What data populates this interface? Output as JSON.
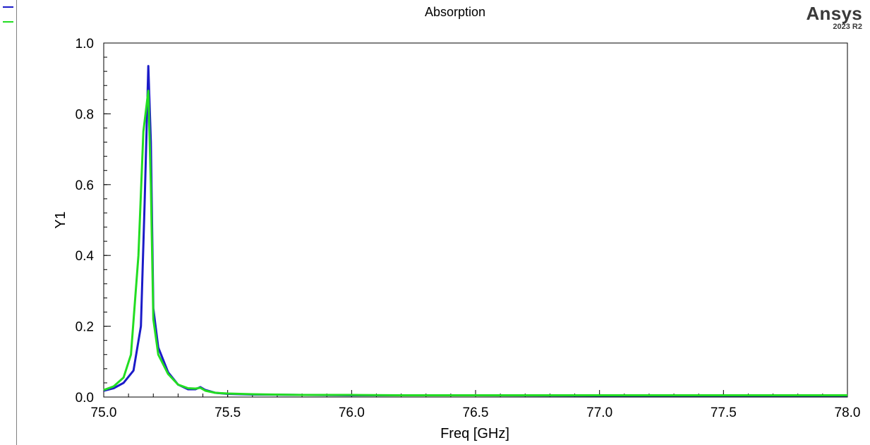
{
  "brand": {
    "name": "Ansys",
    "version": "2023 R2"
  },
  "colors": {
    "series1": "#1b1bc8",
    "series2": "#22dd22",
    "frame": "#000000"
  },
  "chart_data": {
    "type": "line",
    "title": "Absorption",
    "xlabel": "Freq [GHz]",
    "ylabel": "Y1",
    "xlim": [
      75.0,
      78.0
    ],
    "ylim": [
      0.0,
      1.0
    ],
    "grid": false,
    "legend": "top-left",
    "xticks": [
      75.0,
      75.5,
      76.0,
      76.5,
      77.0,
      77.5,
      78.0
    ],
    "xtick_labels": [
      "75.0",
      "75.5",
      "76.0",
      "76.5",
      "77.0",
      "77.5",
      "78.0"
    ],
    "yticks": [
      0.0,
      0.2,
      0.4,
      0.6,
      0.8,
      1.0
    ],
    "ytick_labels": [
      "0.0",
      "0.2",
      "0.4",
      "0.6",
      "0.8",
      "1.0"
    ],
    "series": [
      {
        "color": "#1b1bc8",
        "x": [
          75.0,
          75.04,
          75.08,
          75.12,
          75.15,
          75.165,
          75.18,
          75.19,
          75.2,
          75.22,
          75.26,
          75.3,
          75.34,
          75.37,
          75.39,
          75.41,
          75.45,
          75.5,
          75.6,
          75.8,
          76.0,
          76.2,
          76.5,
          77.0,
          77.5,
          78.0
        ],
        "y": [
          0.018,
          0.025,
          0.04,
          0.075,
          0.2,
          0.55,
          0.935,
          0.72,
          0.25,
          0.14,
          0.07,
          0.035,
          0.022,
          0.022,
          0.028,
          0.02,
          0.012,
          0.009,
          0.007,
          0.006,
          0.005,
          0.005,
          0.005,
          0.004,
          0.004,
          0.004
        ]
      },
      {
        "color": "#22dd22",
        "x": [
          75.0,
          75.04,
          75.08,
          75.11,
          75.14,
          75.16,
          75.18,
          75.19,
          75.2,
          75.22,
          75.26,
          75.3,
          75.34,
          75.37,
          75.39,
          75.41,
          75.45,
          75.5,
          75.6,
          75.8,
          76.0,
          76.2,
          76.5,
          77.0,
          77.5,
          78.0
        ],
        "y": [
          0.02,
          0.03,
          0.055,
          0.12,
          0.4,
          0.75,
          0.865,
          0.6,
          0.22,
          0.12,
          0.065,
          0.035,
          0.025,
          0.024,
          0.026,
          0.018,
          0.012,
          0.01,
          0.008,
          0.006,
          0.006,
          0.005,
          0.005,
          0.005,
          0.005,
          0.005
        ]
      }
    ]
  }
}
